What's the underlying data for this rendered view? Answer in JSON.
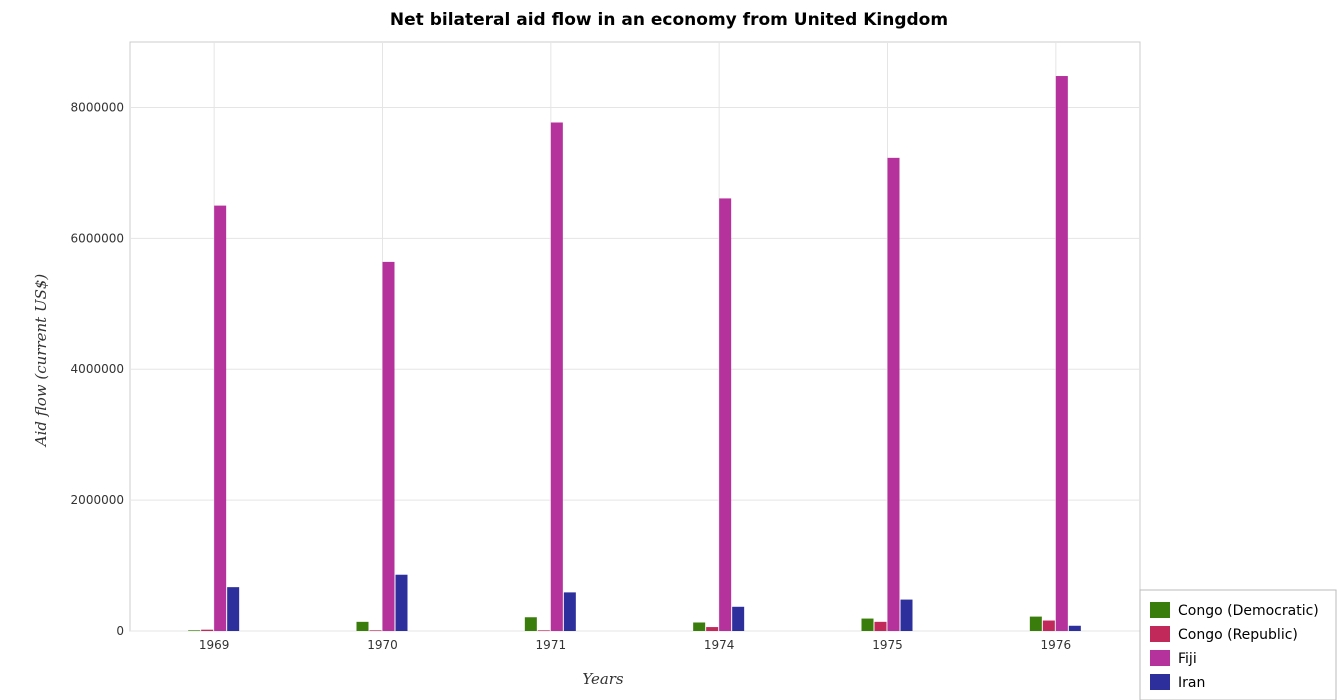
{
  "chart_data": {
    "type": "bar",
    "title": "Net bilateral aid flow in an economy from United Kingdom",
    "xlabel": "Years",
    "ylabel": "Aid flow (current US$)",
    "categories": [
      "1969",
      "1970",
      "1971",
      "1974",
      "1975",
      "1976"
    ],
    "ylim": [
      0,
      9000000
    ],
    "yticks": [
      0,
      2000000,
      4000000,
      6000000,
      8000000
    ],
    "ytick_labels": [
      "0",
      "2000000",
      "4000000",
      "6000000",
      "8000000"
    ],
    "grid": true,
    "legend_position": "bottom-right",
    "series": [
      {
        "name": "Congo (Democratic)",
        "color": "#3a7d0c",
        "values": [
          10000,
          140000,
          210000,
          130000,
          190000,
          220000
        ]
      },
      {
        "name": "Congo (Republic)",
        "color": "#c0295a",
        "values": [
          20000,
          10000,
          10000,
          60000,
          140000,
          160000
        ]
      },
      {
        "name": "Fiji",
        "color": "#b5319b",
        "values": [
          6500000,
          5640000,
          7770000,
          6610000,
          7230000,
          8480000
        ]
      },
      {
        "name": "Iran",
        "color": "#2d2f9c",
        "values": [
          670000,
          860000,
          590000,
          370000,
          480000,
          80000
        ]
      }
    ]
  }
}
